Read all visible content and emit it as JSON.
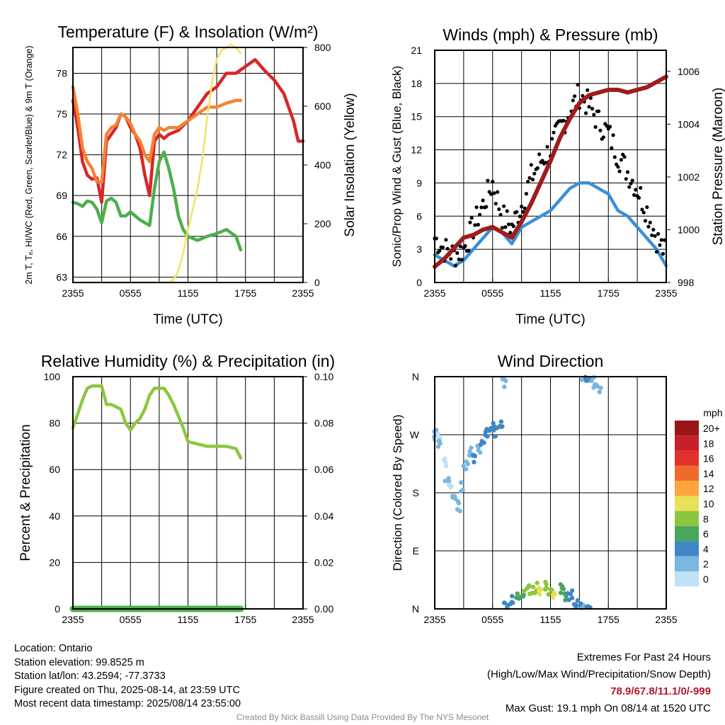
{
  "chart_data": [
    {
      "type": "line",
      "title": "Temperature (F) & Insolation (W/m²)",
      "xlabel": "Time (UTC)",
      "ylabel": "2m T, Tₑ, HI/WC (Red, Green, Scarlet/Blue) & 9m T (Orange)",
      "y2label": "Solar Insolation (Yellow)",
      "x_ticks": [
        "2355",
        "0555",
        "1155",
        "1755",
        "2355"
      ],
      "y_ticks": [
        63,
        66,
        69,
        72,
        75,
        78
      ],
      "y2_ticks": [
        0,
        200,
        400,
        600,
        800
      ],
      "ylim": [
        62.6,
        79.9
      ],
      "y2lim": [
        0,
        800
      ],
      "grid": true,
      "series": [
        {
          "name": "2m T",
          "color": "#d62728",
          "x_hours": [
            0,
            0.5,
            1,
            1.5,
            2,
            2.5,
            3,
            3.5,
            4,
            4.5,
            5,
            5.5,
            6,
            6.5,
            7,
            7.5,
            8,
            8.5,
            9,
            9.5,
            10,
            11,
            12,
            13,
            14,
            15,
            16,
            17,
            18,
            19,
            20,
            21,
            22,
            22.5,
            23,
            23.5,
            24
          ],
          "values": [
            76.0,
            74.0,
            71.5,
            70.5,
            70.2,
            70.3,
            68.5,
            73.0,
            73.5,
            74.0,
            75.0,
            74.8,
            74.0,
            73.5,
            72.5,
            70.5,
            69.0,
            73.0,
            73.5,
            73.2,
            73.5,
            73.8,
            74.5,
            75.5,
            76.5,
            77.0,
            78.0,
            78.0,
            78.5,
            79.0,
            78.2,
            77.5,
            76.5,
            75.5,
            74.5,
            73.0,
            73.0
          ]
        },
        {
          "name": "9m T",
          "color": "#f58231",
          "x_hours": [
            0,
            0.5,
            1,
            1.5,
            2,
            2.5,
            3,
            3.5,
            4,
            4.5,
            5,
            5.5,
            6,
            6.5,
            7,
            7.5,
            8,
            8.5,
            9,
            9.5,
            10,
            11,
            12,
            13,
            14,
            15,
            16,
            17,
            17.5
          ],
          "values": [
            77.0,
            75.0,
            72.5,
            71.5,
            71.0,
            70.0,
            70.0,
            73.5,
            74.0,
            74.2,
            75.0,
            74.8,
            74.3,
            73.5,
            73.0,
            72.0,
            71.5,
            73.5,
            74.0,
            73.8,
            74.0,
            74.0,
            74.5,
            75.0,
            75.5,
            75.5,
            75.8,
            76.0,
            76.0
          ]
        },
        {
          "name": "Td",
          "color": "#4daf4a",
          "x_hours": [
            0,
            0.5,
            1,
            1.5,
            2,
            2.5,
            3,
            3.5,
            4,
            4.5,
            5,
            5.5,
            6,
            6.5,
            7,
            7.5,
            8,
            8.5,
            9,
            9.5,
            10,
            10.5,
            11,
            11.5,
            12,
            13,
            14,
            15,
            16,
            17,
            17.5
          ],
          "values": [
            68.5,
            68.4,
            68.2,
            68.6,
            68.5,
            68.0,
            67.0,
            68.6,
            68.8,
            68.5,
            67.5,
            67.5,
            67.8,
            67.5,
            67.2,
            67.0,
            66.8,
            69.5,
            71.5,
            72.2,
            71.0,
            69.5,
            67.5,
            66.5,
            66.0,
            65.7,
            66.0,
            66.2,
            66.5,
            66.0,
            65.0
          ]
        },
        {
          "name": "Solar Insolation",
          "color": "#f7e066",
          "axis": "right",
          "x_hours": [
            0,
            2,
            4,
            6,
            8,
            10,
            10.5,
            11,
            11.5,
            12,
            12.5,
            13,
            13.5,
            14,
            14.5,
            15,
            15.5,
            16,
            16.5,
            17,
            17.5
          ],
          "values": [
            0,
            0,
            0,
            0,
            0,
            0,
            10,
            40,
            100,
            180,
            250,
            320,
            420,
            560,
            680,
            760,
            790,
            800,
            810,
            800,
            780
          ]
        }
      ]
    },
    {
      "type": "line",
      "title": "Winds (mph) & Pressure (mb)",
      "xlabel": "Time (UTC)",
      "ylabel": "Sonic/Prop Wind & Gust (Blue, Black)",
      "y2label": "Station Pressure (Maroon)",
      "x_ticks": [
        "2355",
        "0555",
        "1155",
        "1755",
        "2355"
      ],
      "y_ticks": [
        0,
        3,
        6,
        9,
        12,
        15,
        18,
        21
      ],
      "y2_ticks": [
        998,
        1000,
        1002,
        1004,
        1006
      ],
      "ylim": [
        0,
        21
      ],
      "y2lim": [
        998,
        1006.8
      ],
      "grid": true,
      "series": [
        {
          "name": "Sonic/Prop Wind",
          "color": "#3a8fd8",
          "x_hours": [
            0,
            1,
            2,
            3,
            4,
            5,
            6,
            7,
            8,
            9,
            10,
            11,
            12,
            13,
            14,
            15,
            16,
            17,
            18,
            19,
            20,
            21,
            22,
            23,
            24
          ],
          "values": [
            2.5,
            2.0,
            1.5,
            2.0,
            3.0,
            4.0,
            5.0,
            4.5,
            3.5,
            5.0,
            5.5,
            6.0,
            6.5,
            7.5,
            8.5,
            9.0,
            9.0,
            8.5,
            8.0,
            6.5,
            6.0,
            5.0,
            4.0,
            3.0,
            1.5
          ]
        },
        {
          "name": "Gust",
          "color": "#000000",
          "x_hours": [
            0,
            1,
            2,
            3,
            4,
            5,
            6,
            7,
            8,
            9,
            10,
            11,
            12,
            13,
            14,
            15,
            16,
            17,
            18,
            19,
            20,
            21,
            22,
            23,
            24
          ],
          "values": [
            4.0,
            3.0,
            2.5,
            3.0,
            5.0,
            7.0,
            9.0,
            6.0,
            5.0,
            7.0,
            9.5,
            11.0,
            12.0,
            14.0,
            15.5,
            17.0,
            16.0,
            14.5,
            13.5,
            11.5,
            10.0,
            8.5,
            6.5,
            4.0,
            2.5
          ]
        },
        {
          "name": "Station Pressure",
          "color": "#a01c1c",
          "axis": "right",
          "x_hours": [
            0,
            1,
            2,
            3,
            4,
            5,
            6,
            7,
            8,
            9,
            10,
            11,
            12,
            13,
            14,
            15,
            16,
            17,
            18,
            19,
            20,
            21,
            22,
            23,
            24
          ],
          "values": [
            998.6,
            998.9,
            999.3,
            999.7,
            999.8,
            1000.0,
            1000.1,
            999.9,
            999.7,
            1000.3,
            1001.0,
            1001.8,
            1002.6,
            1003.5,
            1004.2,
            1004.8,
            1005.1,
            1005.2,
            1005.3,
            1005.3,
            1005.2,
            1005.3,
            1005.4,
            1005.6,
            1005.8
          ]
        }
      ]
    },
    {
      "type": "line",
      "title": "Relative Humidity (%) & Precipitation (in)",
      "xlabel": "",
      "ylabel": "Percent & Precipitation",
      "x_ticks": [
        "2355",
        "0555",
        "1155",
        "1755",
        "2355"
      ],
      "y_ticks": [
        0,
        20,
        40,
        60,
        80,
        100
      ],
      "y2_ticks": [
        "0.00",
        "0.02",
        "0.04",
        "0.06",
        "0.08",
        "0.10"
      ],
      "ylim": [
        0,
        100
      ],
      "y2lim": [
        0,
        0.1
      ],
      "grid": true,
      "series": [
        {
          "name": "Relative Humidity",
          "color": "#8dc63f",
          "x_hours": [
            0,
            0.5,
            1,
            1.5,
            2,
            2.5,
            3,
            3.5,
            4,
            4.5,
            5,
            5.5,
            6,
            6.5,
            7,
            7.5,
            8,
            8.5,
            9,
            9.5,
            10,
            10.5,
            11,
            11.5,
            12,
            13,
            14,
            15,
            16,
            17,
            17.5
          ],
          "values": [
            78,
            84,
            90,
            95,
            96,
            96,
            96,
            88,
            88,
            87,
            86,
            80,
            77,
            80,
            82,
            86,
            92,
            95,
            95,
            95,
            92,
            88,
            83,
            78,
            72,
            71,
            70,
            70,
            70,
            69,
            65
          ]
        },
        {
          "name": "Precipitation",
          "color": "#4daf4a",
          "axis": "right",
          "x_hours": [
            0,
            17.5
          ],
          "values": [
            0,
            0
          ]
        }
      ]
    },
    {
      "type": "scatter",
      "title": "Wind Direction",
      "xlabel": "",
      "ylabel": "Direction (Colored By Speed)",
      "x_ticks": [
        "2355",
        "0555",
        "1155",
        "1755",
        "2355"
      ],
      "y_ticks": [
        "N",
        "E",
        "S",
        "W",
        "N"
      ],
      "ylim": [
        0,
        360
      ],
      "grid": true,
      "legend": {
        "title": "mph",
        "position": "right",
        "labels": [
          "20+",
          "18",
          "16",
          "14",
          "12",
          "10",
          "8",
          "6",
          "4",
          "2",
          "0"
        ],
        "colors": [
          "#99151a",
          "#c8202a",
          "#e2322e",
          "#f06a2d",
          "#fca53c",
          "#e8e15a",
          "#8cc63f",
          "#4aa65c",
          "#3f86c4",
          "#79b6e0",
          "#bfe2f5"
        ]
      },
      "points": [
        {
          "x": 0.1,
          "deg": 270,
          "mph": 2
        },
        {
          "x": 0.3,
          "deg": 265,
          "mph": 1
        },
        {
          "x": 0.6,
          "deg": 255,
          "mph": 2
        },
        {
          "x": 1.0,
          "deg": 230,
          "mph": 1
        },
        {
          "x": 1.3,
          "deg": 200,
          "mph": 2
        },
        {
          "x": 1.6,
          "deg": 185,
          "mph": 1
        },
        {
          "x": 2.0,
          "deg": 175,
          "mph": 2
        },
        {
          "x": 2.4,
          "deg": 160,
          "mph": 3
        },
        {
          "x": 2.8,
          "deg": 190,
          "mph": 2
        },
        {
          "x": 3.2,
          "deg": 225,
          "mph": 2
        },
        {
          "x": 3.6,
          "deg": 245,
          "mph": 3
        },
        {
          "x": 4.0,
          "deg": 235,
          "mph": 4
        },
        {
          "x": 4.5,
          "deg": 250,
          "mph": 3
        },
        {
          "x": 5.0,
          "deg": 262,
          "mph": 4
        },
        {
          "x": 5.5,
          "deg": 270,
          "mph": 4
        },
        {
          "x": 6.0,
          "deg": 280,
          "mph": 5
        },
        {
          "x": 6.4,
          "deg": 275,
          "mph": 4
        },
        {
          "x": 6.8,
          "deg": 285,
          "mph": 4
        },
        {
          "x": 7.2,
          "deg": 350,
          "mph": 3
        },
        {
          "x": 7.4,
          "deg": 5,
          "mph": 4
        },
        {
          "x": 8.0,
          "deg": 15,
          "mph": 5
        },
        {
          "x": 8.5,
          "deg": 22,
          "mph": 6
        },
        {
          "x": 9.0,
          "deg": 26,
          "mph": 7
        },
        {
          "x": 9.5,
          "deg": 30,
          "mph": 8
        },
        {
          "x": 10.0,
          "deg": 28,
          "mph": 9
        },
        {
          "x": 10.5,
          "deg": 32,
          "mph": 8
        },
        {
          "x": 11.0,
          "deg": 30,
          "mph": 10
        },
        {
          "x": 11.5,
          "deg": 34,
          "mph": 9
        },
        {
          "x": 12.0,
          "deg": 27,
          "mph": 8
        },
        {
          "x": 12.5,
          "deg": 25,
          "mph": 10
        },
        {
          "x": 13.0,
          "deg": 30,
          "mph": 7
        },
        {
          "x": 13.5,
          "deg": 22,
          "mph": 6
        },
        {
          "x": 14.0,
          "deg": 20,
          "mph": 5
        },
        {
          "x": 14.5,
          "deg": 12,
          "mph": 4
        },
        {
          "x": 15.0,
          "deg": 8,
          "mph": 4
        },
        {
          "x": 15.5,
          "deg": 4,
          "mph": 3
        },
        {
          "x": 15.8,
          "deg": 355,
          "mph": 5
        },
        {
          "x": 16.1,
          "deg": 358,
          "mph": 4
        },
        {
          "x": 16.4,
          "deg": 352,
          "mph": 3
        },
        {
          "x": 17.0,
          "deg": 345,
          "mph": 2
        }
      ]
    }
  ],
  "footer": {
    "location": "Location: Ontario",
    "elevation": "Station elevation: 99.8525 m",
    "latlon": "Station lat/lon: 43.2594; -77.3733",
    "created": "Figure created on Thu, 2025-08-14, at 23:59 UTC",
    "recent": "Most recent data timestamp: 2025/08/14 23:55:00",
    "extremes_title": "Extremes For Past 24 Hours",
    "extremes_subtitle": "(High/Low/Max Wind/Precipitation/Snow Depth)",
    "extremes_values": "78.9/67.8/11.1/0/-999",
    "max_gust": "Max Gust: 19.1 mph On 08/14 at 1520 UTC",
    "credit": "Created By Nick Bassill Using Data Provided By The NYS Mesonet"
  }
}
